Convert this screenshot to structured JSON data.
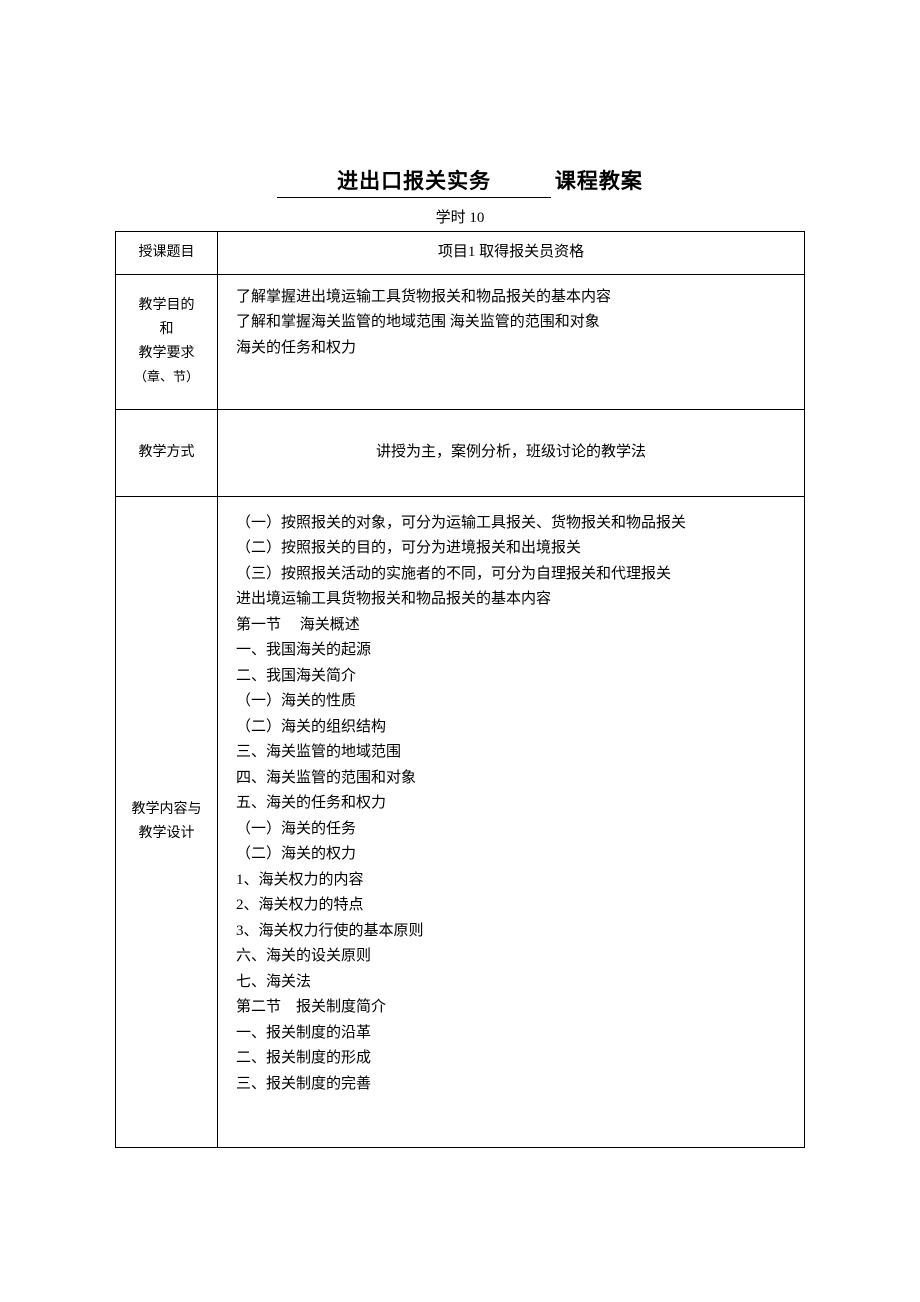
{
  "title": {
    "underlined": "进出口报关实务",
    "plain": "课程教案"
  },
  "subtitle": "学时 10",
  "rows": {
    "topic": {
      "label": "授课题目",
      "value": "项目1 取得报关员资格"
    },
    "objectives": {
      "label_lines": [
        "教学目的",
        "和",
        "教学要求"
      ],
      "label_note": "（章、节）",
      "lines": [
        "了解掌握进出境运输工具货物报关和物品报关的基本内容",
        "了解和掌握海关监管的地域范围 海关监管的范围和对象",
        "海关的任务和权力"
      ]
    },
    "method": {
      "label": "教学方式",
      "value": "讲授为主，案例分析，班级讨论的教学法"
    },
    "content_design": {
      "label_lines": [
        "教学内容与",
        "教学设计"
      ],
      "lines": [
        "（一）按照报关的对象，可分为运输工具报关、货物报关和物品报关",
        "（二）按照报关的目的，可分为进境报关和出境报关",
        "（三）按照报关活动的实施者的不同，可分为自理报关和代理报关",
        "进出境运输工具货物报关和物品报关的基本内容",
        "第一节　 海关概述",
        "一、我国海关的起源",
        "二、我国海关简介",
        "（一）海关的性质",
        "（二）海关的组织结构",
        "三、海关监管的地域范围",
        "四、海关监管的范围和对象",
        "五、海关的任务和权力",
        "（一）海关的任务",
        "（二）海关的权力",
        "1、海关权力的内容",
        "2、海关权力的特点",
        "3、海关权力行使的基本原则",
        "六、海关的设关原则",
        "七、海关法",
        "第二节　报关制度简介",
        "一、报关制度的沿革",
        "二、报关制度的形成",
        "三、报关制度的完善"
      ]
    }
  },
  "styles": {
    "text_color": "#000000",
    "background_color": "#ffffff",
    "border_color": "#000000",
    "title_fontsize": 21,
    "body_fontsize": 15,
    "note_fontsize": 13
  }
}
